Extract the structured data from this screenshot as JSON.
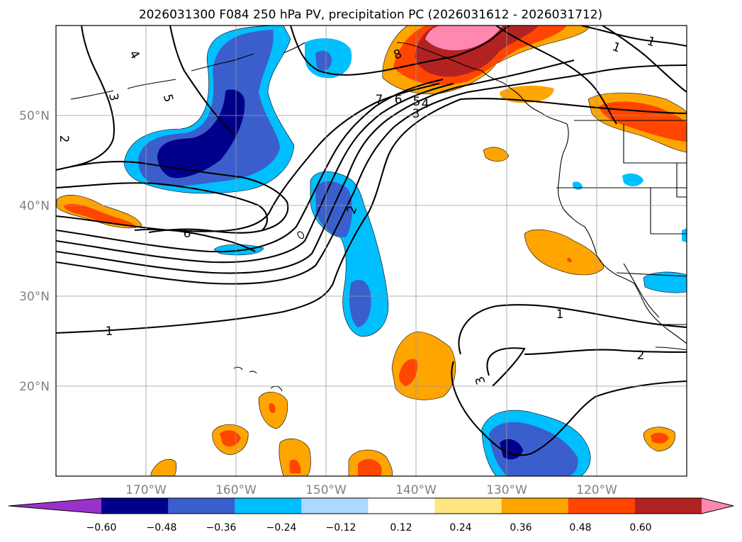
{
  "title": "2026031300 F084 250 hPa PV, precipitation PC (2026031612 - 2026031712)",
  "map": {
    "lon_range": [
      -180,
      -110
    ],
    "lat_range": [
      10,
      60
    ],
    "lon_ticks": [
      "170°W",
      "160°W",
      "150°W",
      "140°W",
      "130°W",
      "120°W"
    ],
    "lat_ticks": [
      "50°N",
      "40°N",
      "30°N",
      "20°N"
    ],
    "gridlines": true
  },
  "colorbar": {
    "ticks": [
      "−0.60",
      "−0.48",
      "−0.36",
      "−0.24",
      "−0.12",
      "0.12",
      "0.24",
      "0.36",
      "0.48",
      "0.60"
    ],
    "colors": [
      "#9932cc",
      "#00008b",
      "#3a5fcd",
      "#00bfff",
      "#add8ff",
      "#ffffff",
      "#ffe680",
      "#ffa500",
      "#ff4500",
      "#b22222",
      "#ff88b0"
    ],
    "extend": "both"
  },
  "contour_labels": [
    "4",
    "5",
    "3",
    "2",
    "6",
    "1",
    "7",
    "6",
    "5",
    "4",
    "3",
    "2",
    "8",
    "1",
    "1",
    "1",
    "2",
    "3"
  ]
}
